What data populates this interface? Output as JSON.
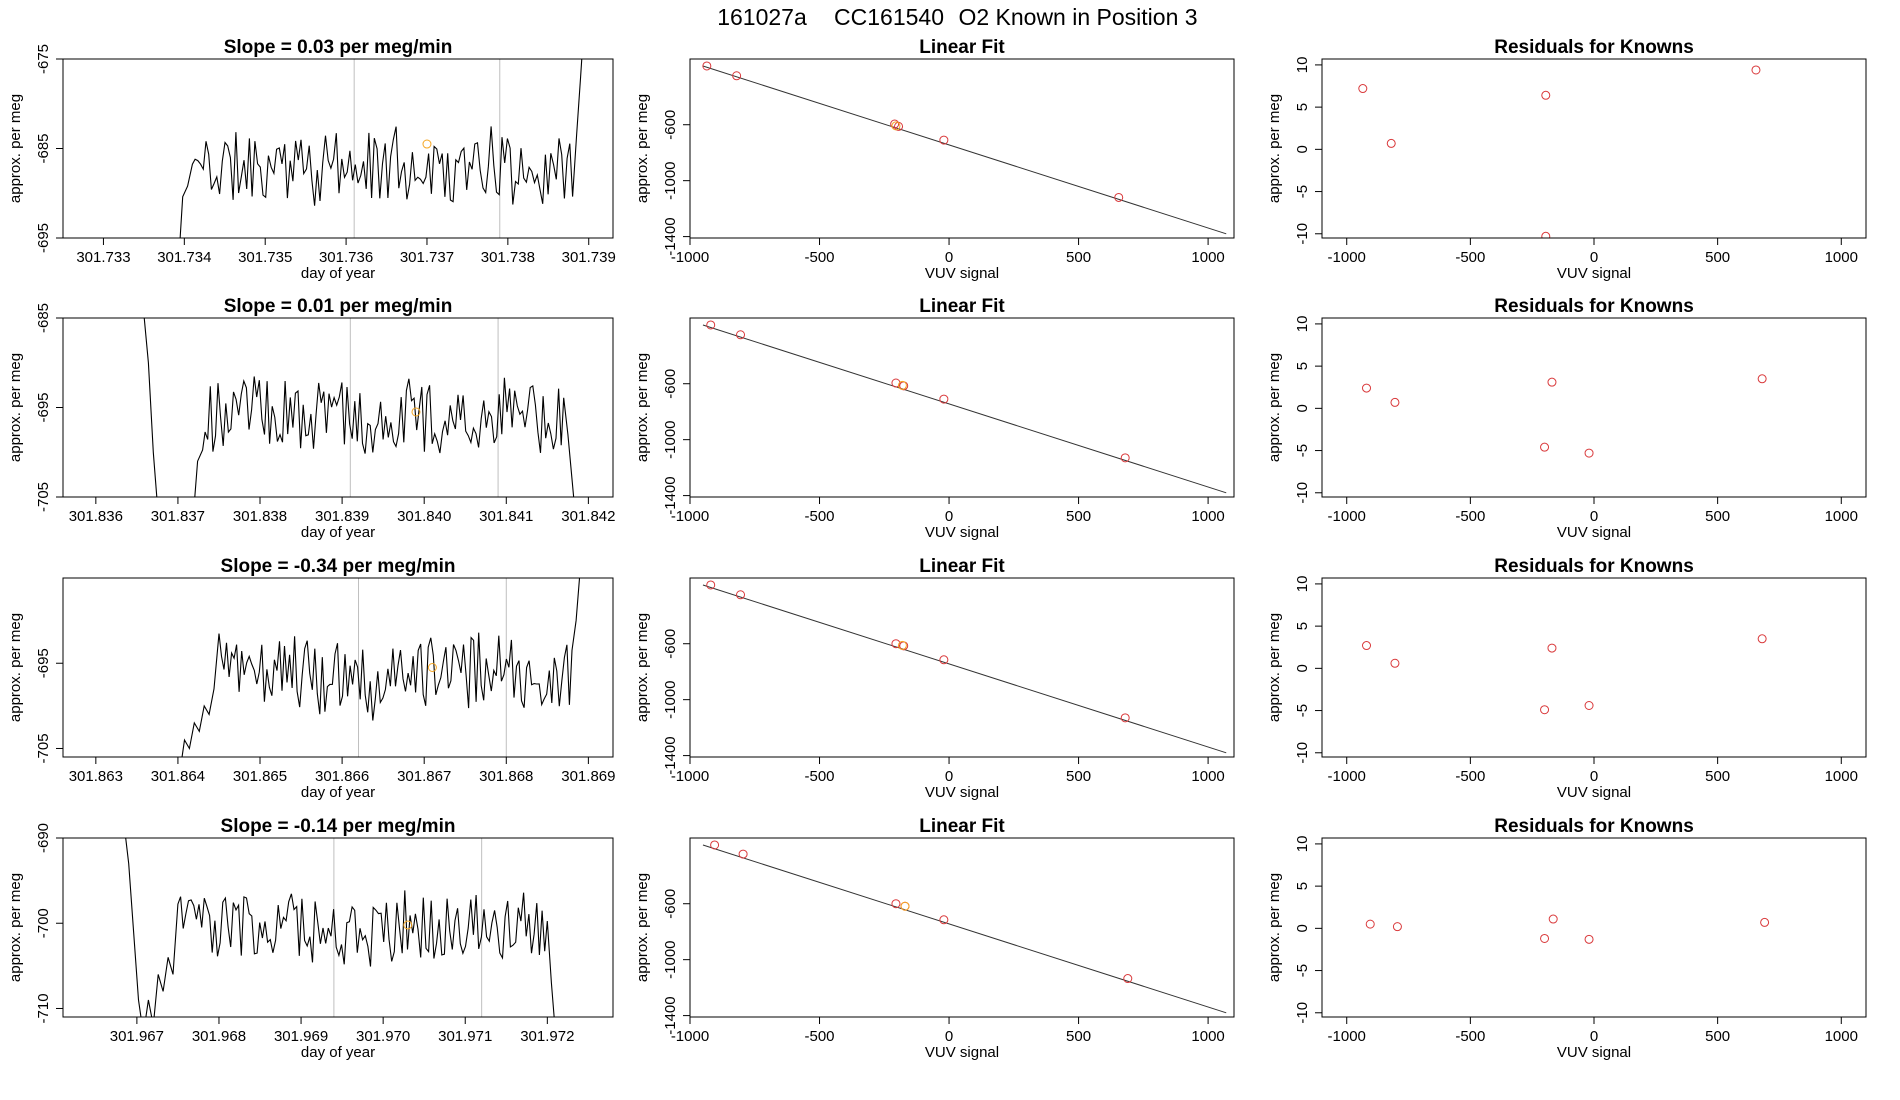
{
  "figure": {
    "title_date": "161027a",
    "title_cylinder": "CC161540",
    "title_text": "O2 Known in Position  3"
  },
  "chart_data": [
    {
      "row": 0,
      "series": {
        "type": "line",
        "title": "Slope =  0.03  per meg/min",
        "xlabel": "day of year",
        "ylabel": "approx. per meg",
        "xlim": [
          301.7325,
          301.7393
        ],
        "ylim": [
          -695,
          -675
        ],
        "xticks": [
          301.733,
          301.734,
          301.735,
          301.736,
          301.737,
          301.738,
          301.739
        ],
        "xtick_labels": [
          "301.733",
          "301.734",
          "301.735",
          "301.736",
          "301.737",
          "301.738",
          "301.739"
        ],
        "yticks": [
          -695,
          -685,
          -675
        ],
        "ytick_labels": [
          "-695",
          "-685",
          "-675"
        ],
        "start": 301.7341,
        "end": 301.7388,
        "vlines": [
          301.7361,
          301.7379
        ],
        "base": -687,
        "ampl": 4,
        "seed": 11,
        "pre_values": [
          -699,
          -699,
          -699,
          -699,
          -699,
          -699,
          -699,
          -690.4,
          -689.2
        ],
        "post_values": [
          -683.5,
          -677,
          -670
        ],
        "highlight": {
          "x": 301.737,
          "y": -684.5
        }
      },
      "fit": {
        "type": "scatter",
        "title": "Linear Fit",
        "xlabel": "VUV signal",
        "ylabel": "approx. per meg",
        "xlim": [
          -1000,
          1100
        ],
        "ylim": [
          -1410,
          -130
        ],
        "xticks": [
          -1000,
          -500,
          0,
          500,
          1000
        ],
        "xtick_labels": [
          "-1000",
          "-500",
          "0",
          "500",
          "1000"
        ],
        "yticks": [
          -1400,
          -1000,
          -600
        ],
        "ytick_labels": [
          "-1400",
          "-1000",
          "-600"
        ],
        "line": {
          "x1": -950,
          "y1": -180,
          "x2": 1070,
          "y2": -1380
        },
        "points": [
          [
            -935,
            -180
          ],
          [
            -820,
            -250
          ],
          [
            -210,
            -595
          ],
          [
            -195,
            -612
          ],
          [
            -20,
            -710
          ],
          [
            655,
            -1120
          ]
        ],
        "highlight": [
          [
            -205,
            -608
          ]
        ]
      },
      "residuals": {
        "type": "scatter",
        "title": "Residuals for Knowns",
        "xlabel": "VUV signal",
        "ylabel": "approx. per meg",
        "xlim": [
          -1100,
          1100
        ],
        "ylim": [
          -10.5,
          10.7
        ],
        "xticks": [
          -1000,
          -500,
          0,
          500,
          1000
        ],
        "xtick_labels": [
          "-1000",
          "-500",
          "0",
          "500",
          "1000"
        ],
        "yticks": [
          -10,
          -5,
          0,
          5,
          10
        ],
        "ytick_labels": [
          "-10",
          "-5",
          "0",
          "5",
          "10"
        ],
        "points": [
          [
            -935,
            7.2
          ],
          [
            -820,
            0.7
          ],
          [
            -195,
            6.4
          ],
          [
            -195,
            -10.3
          ],
          [
            655,
            9.4
          ]
        ]
      }
    },
    {
      "row": 1,
      "series": {
        "type": "line",
        "title": "Slope =  0.01  per meg/min",
        "xlabel": "day of year",
        "ylabel": "approx. per meg",
        "xlim": [
          301.8356,
          301.8423
        ],
        "ylim": [
          -705,
          -685
        ],
        "xticks": [
          301.836,
          301.837,
          301.838,
          301.839,
          301.84,
          301.841,
          301.842
        ],
        "xtick_labels": [
          "301.836",
          "301.837",
          "301.838",
          "301.839",
          "301.840",
          "301.841",
          "301.842"
        ],
        "yticks": [
          -705,
          -695,
          -685
        ],
        "ytick_labels": [
          "-705",
          "-695",
          "-685"
        ],
        "start": 301.8373,
        "end": 301.8417,
        "vlines": [
          301.8391,
          301.8409
        ],
        "base": -696,
        "ampl": 4,
        "seed": 23,
        "pre_values": [
          -678,
          -680,
          -684,
          -690,
          -700,
          -707,
          -708,
          -708,
          -708,
          -708,
          -708,
          -708,
          -708,
          -701
        ],
        "post_values": [
          -698,
          -703,
          -708
        ],
        "highlight": {
          "x": 301.8399,
          "y": -695.5
        }
      },
      "fit": {
        "type": "scatter",
        "title": "Linear Fit",
        "xlabel": "VUV signal",
        "ylabel": "approx. per meg",
        "xlim": [
          -1000,
          1100
        ],
        "ylim": [
          -1410,
          -130
        ],
        "xticks": [
          -1000,
          -500,
          0,
          500,
          1000
        ],
        "xtick_labels": [
          "-1000",
          "-500",
          "0",
          "500",
          "1000"
        ],
        "yticks": [
          -1400,
          -1000,
          -600
        ],
        "ytick_labels": [
          "-1400",
          "-1000",
          "-600"
        ],
        "line": {
          "x1": -950,
          "y1": -180,
          "x2": 1070,
          "y2": -1380
        },
        "points": [
          [
            -920,
            -180
          ],
          [
            -805,
            -250
          ],
          [
            -205,
            -595
          ],
          [
            -175,
            -615
          ],
          [
            -20,
            -710
          ],
          [
            680,
            -1130
          ]
        ],
        "highlight": [
          [
            -180,
            -612
          ]
        ]
      },
      "residuals": {
        "type": "scatter",
        "title": "Residuals for Knowns",
        "xlabel": "VUV signal",
        "ylabel": "approx. per meg",
        "xlim": [
          -1100,
          1100
        ],
        "ylim": [
          -10.5,
          10.7
        ],
        "xticks": [
          -1000,
          -500,
          0,
          500,
          1000
        ],
        "xtick_labels": [
          "-1000",
          "-500",
          "0",
          "500",
          "1000"
        ],
        "yticks": [
          -10,
          -5,
          0,
          5,
          10
        ],
        "ytick_labels": [
          "-10",
          "-5",
          "0",
          "5",
          "10"
        ],
        "points": [
          [
            -920,
            2.4
          ],
          [
            -805,
            0.7
          ],
          [
            -170,
            3.1
          ],
          [
            -200,
            -4.6
          ],
          [
            -20,
            -5.3
          ],
          [
            680,
            3.5
          ]
        ]
      }
    },
    {
      "row": 2,
      "series": {
        "type": "line",
        "title": "Slope =  -0.34  per meg/min",
        "xlabel": "day of year",
        "ylabel": "approx. per meg",
        "xlim": [
          301.8626,
          301.8693
        ],
        "ylim": [
          -706,
          -685
        ],
        "xticks": [
          301.863,
          301.864,
          301.865,
          301.866,
          301.867,
          301.868,
          301.869
        ],
        "xtick_labels": [
          "301.863",
          "301.864",
          "301.865",
          "301.866",
          "301.867",
          "301.868",
          "301.869"
        ],
        "yticks": [
          -705,
          -695
        ],
        "ytick_labels": [
          "-705",
          "-695"
        ],
        "start": 301.8645,
        "end": 301.8688,
        "vlines": [
          301.8662,
          301.868
        ],
        "base": -696,
        "ampl": 4.5,
        "seed": 37,
        "pre_values": [
          -708,
          -704,
          -705,
          -702,
          -703,
          -700,
          -701,
          -698
        ],
        "post_values": [
          -690,
          -684,
          -680
        ],
        "highlight": {
          "x": 301.8671,
          "y": -695.5
        }
      },
      "fit": {
        "type": "scatter",
        "title": "Linear Fit",
        "xlabel": "VUV signal",
        "ylabel": "approx. per meg",
        "xlim": [
          -1000,
          1100
        ],
        "ylim": [
          -1410,
          -130
        ],
        "xticks": [
          -1000,
          -500,
          0,
          500,
          1000
        ],
        "xtick_labels": [
          "-1000",
          "-500",
          "0",
          "500",
          "1000"
        ],
        "yticks": [
          -1400,
          -1000,
          -600
        ],
        "ytick_labels": [
          "-1400",
          "-1000",
          "-600"
        ],
        "line": {
          "x1": -950,
          "y1": -180,
          "x2": 1070,
          "y2": -1380
        },
        "points": [
          [
            -920,
            -180
          ],
          [
            -805,
            -250
          ],
          [
            -205,
            -600
          ],
          [
            -175,
            -615
          ],
          [
            -20,
            -715
          ],
          [
            680,
            -1130
          ]
        ],
        "highlight": [
          [
            -180,
            -612
          ]
        ]
      },
      "residuals": {
        "type": "scatter",
        "title": "Residuals for Knowns",
        "xlabel": "VUV signal",
        "ylabel": "approx. per meg",
        "xlim": [
          -1100,
          1100
        ],
        "ylim": [
          -10.5,
          10.7
        ],
        "xticks": [
          -1000,
          -500,
          0,
          500,
          1000
        ],
        "xtick_labels": [
          "-1000",
          "-500",
          "0",
          "500",
          "1000"
        ],
        "yticks": [
          -10,
          -5,
          0,
          5,
          10
        ],
        "ytick_labels": [
          "-10",
          "-5",
          "0",
          "5",
          "10"
        ],
        "points": [
          [
            -920,
            2.7
          ],
          [
            -805,
            0.6
          ],
          [
            -170,
            2.4
          ],
          [
            -200,
            -4.9
          ],
          [
            -20,
            -4.4
          ],
          [
            680,
            3.5
          ]
        ]
      }
    },
    {
      "row": 3,
      "series": {
        "type": "line",
        "title": "Slope =  -0.14  per meg/min",
        "xlabel": "day of year",
        "ylabel": "approx. per meg",
        "xlim": [
          301.9661,
          301.9728
        ],
        "ylim": [
          -711,
          -690
        ],
        "xticks": [
          301.967,
          301.968,
          301.969,
          301.97,
          301.971,
          301.972
        ],
        "xtick_labels": [
          "301.967",
          "301.968",
          "301.969",
          "301.970",
          "301.971",
          "301.972"
        ],
        "yticks": [
          -710,
          -700,
          -690
        ],
        "ytick_labels": [
          "-710",
          "-700",
          "-690"
        ],
        "start": 301.9675,
        "end": 301.972,
        "vlines": [
          301.9694,
          301.9712
        ],
        "base": -700,
        "ampl": 4,
        "seed": 53,
        "pre_values": [
          -688,
          -693,
          -701,
          -709,
          -713,
          -709,
          -712,
          -706,
          -708,
          -704,
          -706
        ],
        "post_values": [
          -707,
          -713
        ],
        "highlight": {
          "x": 301.9703,
          "y": -700.2
        }
      },
      "fit": {
        "type": "scatter",
        "title": "Linear Fit",
        "xlabel": "VUV signal",
        "ylabel": "approx. per meg",
        "xlim": [
          -1000,
          1100
        ],
        "ylim": [
          -1410,
          -130
        ],
        "xticks": [
          -1000,
          -500,
          0,
          500,
          1000
        ],
        "xtick_labels": [
          "-1000",
          "-500",
          "0",
          "500",
          "1000"
        ],
        "yticks": [
          -1400,
          -1000,
          -600
        ],
        "ytick_labels": [
          "-1400",
          "-1000",
          "-600"
        ],
        "line": {
          "x1": -950,
          "y1": -180,
          "x2": 1070,
          "y2": -1380
        },
        "points": [
          [
            -905,
            -180
          ],
          [
            -795,
            -245
          ],
          [
            -205,
            -600
          ],
          [
            -170,
            -618
          ],
          [
            -20,
            -715
          ],
          [
            690,
            -1135
          ]
        ],
        "highlight": [
          [
            -170,
            -618
          ]
        ]
      },
      "residuals": {
        "type": "scatter",
        "title": "Residuals for Knowns",
        "xlabel": "VUV signal",
        "ylabel": "approx. per meg",
        "xlim": [
          -1100,
          1100
        ],
        "ylim": [
          -10.5,
          10.7
        ],
        "xticks": [
          -1000,
          -500,
          0,
          500,
          1000
        ],
        "xtick_labels": [
          "-1000",
          "-500",
          "0",
          "500",
          "1000"
        ],
        "yticks": [
          -10,
          -5,
          0,
          5,
          10
        ],
        "ytick_labels": [
          "-10",
          "-5",
          "0",
          "5",
          "10"
        ],
        "points": [
          [
            -905,
            0.5
          ],
          [
            -795,
            0.2
          ],
          [
            -165,
            1.1
          ],
          [
            -200,
            -1.2
          ],
          [
            -20,
            -1.3
          ],
          [
            690,
            0.7
          ]
        ]
      }
    }
  ],
  "colors": {
    "line": "#000000",
    "fit_line": "#333333",
    "point": "#d9383a",
    "highlight": "#f5a623",
    "vline": "#bfbfbf"
  }
}
